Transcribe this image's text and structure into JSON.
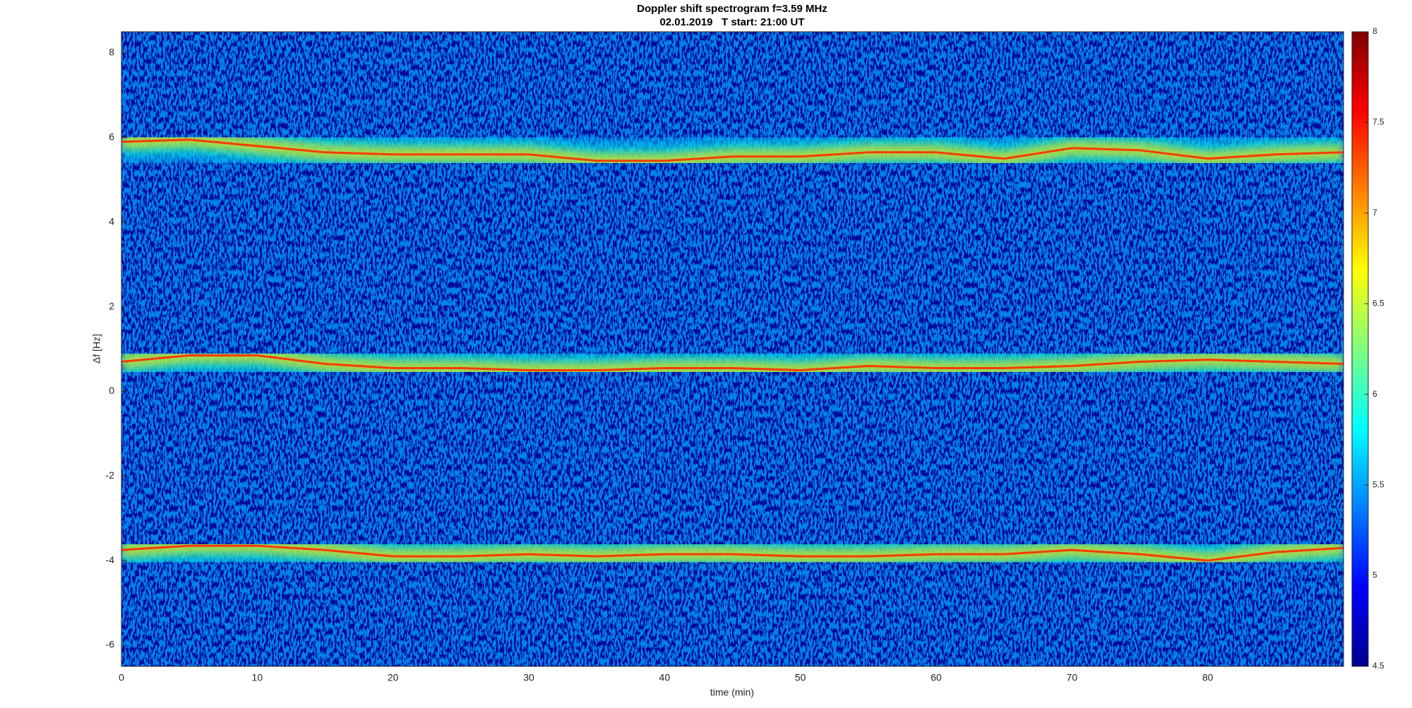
{
  "chart_data": {
    "type": "spectrogram",
    "title": "Doppler shift spectrogram f=3.59 MHz",
    "subtitle": "02.01.2019   T start: 21:00 UT",
    "xlabel": "time (min)",
    "ylabel": "Δf [Hz]",
    "x": [
      0,
      5,
      10,
      15,
      20,
      25,
      30,
      35,
      40,
      45,
      50,
      55,
      60,
      65,
      70,
      75,
      80,
      85,
      90
    ],
    "series": [
      {
        "color": "#ff2a00",
        "values": [
          5.9,
          5.95,
          5.8,
          5.65,
          5.6,
          5.6,
          5.6,
          5.45,
          5.45,
          5.55,
          5.55,
          5.65,
          5.65,
          5.5,
          5.75,
          5.7,
          5.5,
          5.6,
          5.65
        ]
      },
      {
        "color": "#ff2a00",
        "values": [
          0.7,
          0.85,
          0.85,
          0.65,
          0.55,
          0.55,
          0.5,
          0.5,
          0.55,
          0.55,
          0.5,
          0.6,
          0.55,
          0.55,
          0.6,
          0.7,
          0.75,
          0.7,
          0.65
        ]
      },
      {
        "color": "#ff2a00",
        "values": [
          -3.75,
          -3.65,
          -3.65,
          -3.75,
          -3.9,
          -3.9,
          -3.85,
          -3.9,
          -3.85,
          -3.85,
          -3.9,
          -3.9,
          -3.85,
          -3.85,
          -3.75,
          -3.85,
          -4.0,
          -3.8,
          -3.7
        ]
      }
    ],
    "xlim": [
      0,
      90
    ],
    "xticks": [
      0,
      10,
      20,
      30,
      40,
      50,
      60,
      70,
      80
    ],
    "ylim": [
      -6.5,
      8.5
    ],
    "yticks": [
      -6,
      -4,
      -2,
      0,
      2,
      4,
      6,
      8
    ],
    "colormap": "jet",
    "clim": [
      4.5,
      8
    ],
    "cticks": [
      4.5,
      5,
      5.5,
      6,
      6.5,
      7,
      7.5,
      8
    ]
  }
}
